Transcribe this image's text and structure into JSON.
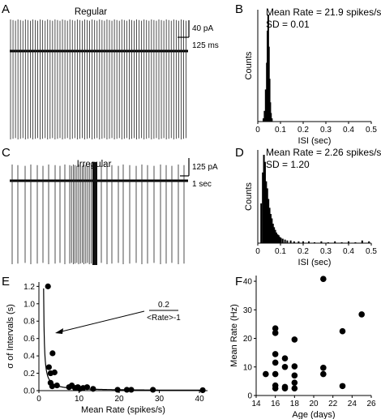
{
  "panels": {
    "A": {
      "label": "A",
      "title": "Regular",
      "scale_y": "40 pA",
      "scale_x": "125 ms"
    },
    "B": {
      "label": "B"
    },
    "C": {
      "label": "C",
      "title": "Irregular",
      "scale_y": "125 pA",
      "scale_x": "1 sec"
    },
    "D": {
      "label": "D"
    },
    "E": {
      "label": "E"
    },
    "F": {
      "label": "F"
    }
  },
  "chart_data": [
    {
      "panel": "B",
      "type": "bar",
      "annotation": [
        "Mean Rate = 21.9 spikes/s",
        "SD = 0.01"
      ],
      "xlabel": "ISI (sec)",
      "ylabel": "Counts",
      "xlim": [
        0,
        0.5
      ],
      "xticks": [
        "0",
        "0.1",
        "0.2",
        "0.3",
        "0.4",
        "0.5"
      ],
      "bins": [
        {
          "x": 0.025,
          "y": 0.03
        },
        {
          "x": 0.03,
          "y": 0.1
        },
        {
          "x": 0.035,
          "y": 0.3
        },
        {
          "x": 0.04,
          "y": 0.55
        },
        {
          "x": 0.043,
          "y": 0.85
        },
        {
          "x": 0.046,
          "y": 1.0
        },
        {
          "x": 0.049,
          "y": 0.7
        },
        {
          "x": 0.052,
          "y": 0.4
        },
        {
          "x": 0.055,
          "y": 0.18
        },
        {
          "x": 0.058,
          "y": 0.08
        },
        {
          "x": 0.062,
          "y": 0.03
        }
      ]
    },
    {
      "panel": "D",
      "type": "bar",
      "annotation": [
        "Mean Rate = 2.26 spikes/s",
        "SD = 1.20"
      ],
      "xlabel": "ISI (sec)",
      "ylabel": "Counts",
      "xlim": [
        0,
        0.5
      ],
      "xticks": [
        "0",
        "0.1",
        "0.2",
        "0.3",
        "0.4",
        "0.5"
      ],
      "bins": [
        {
          "x": 0.015,
          "y": 0.45
        },
        {
          "x": 0.022,
          "y": 0.8
        },
        {
          "x": 0.027,
          "y": 1.0
        },
        {
          "x": 0.032,
          "y": 0.92
        },
        {
          "x": 0.037,
          "y": 0.7
        },
        {
          "x": 0.042,
          "y": 0.62
        },
        {
          "x": 0.047,
          "y": 0.5
        },
        {
          "x": 0.052,
          "y": 0.4
        },
        {
          "x": 0.057,
          "y": 0.33
        },
        {
          "x": 0.062,
          "y": 0.28
        },
        {
          "x": 0.067,
          "y": 0.22
        },
        {
          "x": 0.072,
          "y": 0.18
        },
        {
          "x": 0.077,
          "y": 0.15
        },
        {
          "x": 0.082,
          "y": 0.12
        },
        {
          "x": 0.087,
          "y": 0.1
        },
        {
          "x": 0.092,
          "y": 0.09
        },
        {
          "x": 0.097,
          "y": 0.07
        },
        {
          "x": 0.102,
          "y": 0.06
        },
        {
          "x": 0.11,
          "y": 0.05
        },
        {
          "x": 0.12,
          "y": 0.04
        },
        {
          "x": 0.13,
          "y": 0.03
        },
        {
          "x": 0.145,
          "y": 0.03
        },
        {
          "x": 0.16,
          "y": 0.02
        },
        {
          "x": 0.18,
          "y": 0.02
        },
        {
          "x": 0.2,
          "y": 0.02
        },
        {
          "x": 0.225,
          "y": 0.02
        },
        {
          "x": 0.25,
          "y": 0.01
        },
        {
          "x": 0.28,
          "y": 0.02
        },
        {
          "x": 0.31,
          "y": 0.01
        },
        {
          "x": 0.34,
          "y": 0.02
        },
        {
          "x": 0.37,
          "y": 0.01
        },
        {
          "x": 0.4,
          "y": 0.02
        },
        {
          "x": 0.43,
          "y": 0.01
        },
        {
          "x": 0.46,
          "y": 0.03
        },
        {
          "x": 0.49,
          "y": 0.02
        }
      ]
    },
    {
      "panel": "E",
      "type": "scatter",
      "xlabel": "Mean Rate (spikes/s)",
      "ylabel": "σ of Intervals (s)",
      "xlim": [
        0,
        42
      ],
      "ylim": [
        0,
        1.25
      ],
      "xticks": [
        0,
        10,
        20,
        30,
        40
      ],
      "yticks": [
        "0.0",
        "0.2",
        "0.4",
        "0.6",
        "0.8",
        "1.0",
        "1.2"
      ],
      "fit_label_num": "0.2",
      "fit_label_den": "<Rate>-1",
      "points": [
        {
          "x": 2.26,
          "y": 1.2
        },
        {
          "x": 2.5,
          "y": 0.27
        },
        {
          "x": 2.9,
          "y": 0.2
        },
        {
          "x": 3.4,
          "y": 0.43
        },
        {
          "x": 2.9,
          "y": 0.09
        },
        {
          "x": 3.3,
          "y": 0.05
        },
        {
          "x": 3.9,
          "y": 0.21
        },
        {
          "x": 4.5,
          "y": 0.06
        },
        {
          "x": 7.5,
          "y": 0.04
        },
        {
          "x": 8.2,
          "y": 0.06
        },
        {
          "x": 9.0,
          "y": 0.03
        },
        {
          "x": 9.7,
          "y": 0.04
        },
        {
          "x": 10.2,
          "y": 0.02
        },
        {
          "x": 11.0,
          "y": 0.03
        },
        {
          "x": 12.0,
          "y": 0.04
        },
        {
          "x": 13.5,
          "y": 0.02
        },
        {
          "x": 19.6,
          "y": 0.01
        },
        {
          "x": 21.9,
          "y": 0.01
        },
        {
          "x": 23.0,
          "y": 0.01
        },
        {
          "x": 28.4,
          "y": 0.01
        },
        {
          "x": 40.8,
          "y": 0.005
        }
      ]
    },
    {
      "panel": "F",
      "type": "scatter",
      "xlabel": "Age (days)",
      "ylabel": "Mean Rate (Hz)",
      "xlim": [
        14,
        26
      ],
      "ylim": [
        0,
        42
      ],
      "xticks": [
        14,
        16,
        18,
        20,
        22,
        24,
        26
      ],
      "yticks": [
        0,
        10,
        20,
        30,
        40
      ],
      "points": [
        {
          "x": 15,
          "y": 7.5
        },
        {
          "x": 16,
          "y": 23.5
        },
        {
          "x": 16,
          "y": 21.9
        },
        {
          "x": 16,
          "y": 14.5
        },
        {
          "x": 16,
          "y": 11.5
        },
        {
          "x": 16,
          "y": 7.5
        },
        {
          "x": 16,
          "y": 3.5
        },
        {
          "x": 16,
          "y": 2.5
        },
        {
          "x": 17,
          "y": 13
        },
        {
          "x": 17,
          "y": 10
        },
        {
          "x": 17,
          "y": 3
        },
        {
          "x": 17,
          "y": 2.5
        },
        {
          "x": 18,
          "y": 19.6
        },
        {
          "x": 18,
          "y": 10.2
        },
        {
          "x": 18,
          "y": 7
        },
        {
          "x": 18,
          "y": 4.5
        },
        {
          "x": 18,
          "y": 2.5
        },
        {
          "x": 21,
          "y": 40.8
        },
        {
          "x": 21,
          "y": 9.7
        },
        {
          "x": 21,
          "y": 7.5
        },
        {
          "x": 23,
          "y": 22.5
        },
        {
          "x": 23,
          "y": 3.3
        },
        {
          "x": 25,
          "y": 28.4
        }
      ]
    }
  ]
}
